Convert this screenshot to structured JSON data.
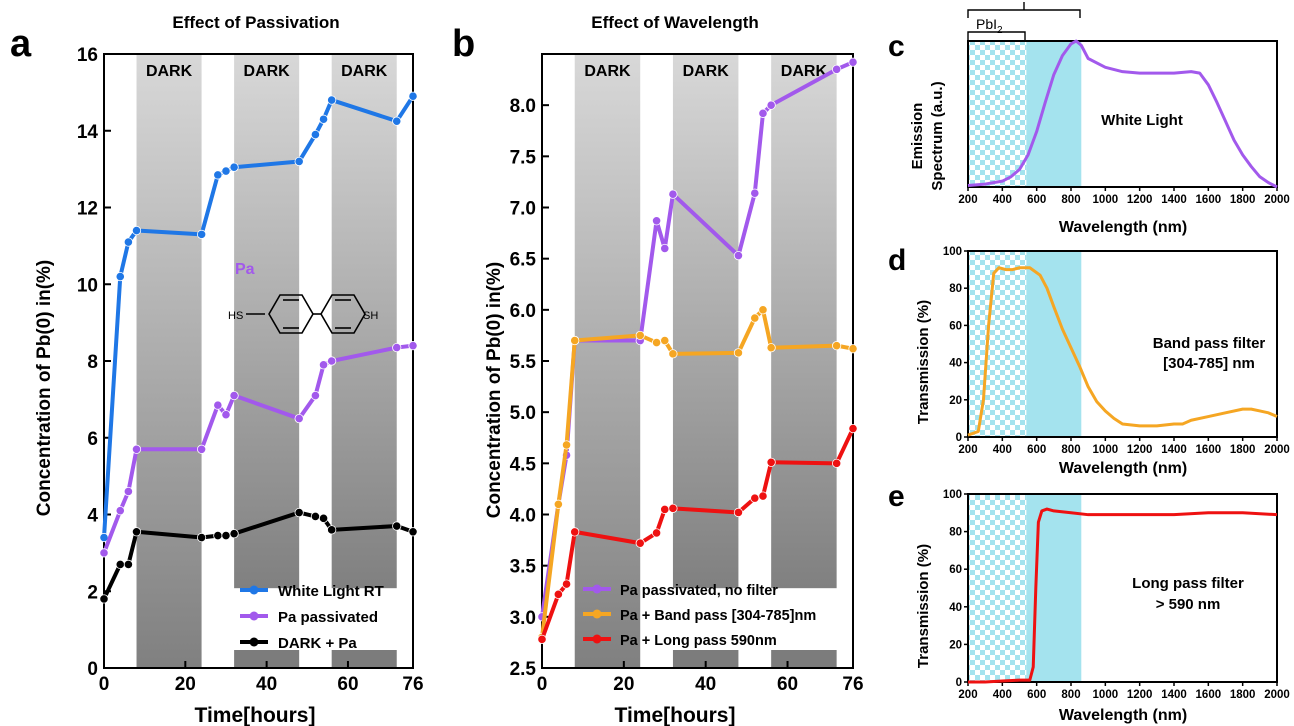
{
  "colors": {
    "blue": "#1f77e6",
    "purple": "#a259ec",
    "black": "#000000",
    "orange": "#f5a623",
    "red": "#ee1111",
    "cyan": "#a4e3ee",
    "dark_band_top": "#d8d8d8",
    "dark_band_bottom": "#808080"
  },
  "dark_label": "DARK",
  "molecule": {
    "name": "Pa",
    "left_group": "HS",
    "right_group": "SH"
  },
  "range_labels": {
    "pbi2_prefix": "PbI",
    "pbi2_subscript": "2"
  },
  "chart_data": [
    {
      "panel": "a",
      "type": "line",
      "title": "Effect of Passivation",
      "xlabel_main": "Time",
      "xlabel_unit": "[hours]",
      "ylabel": "Concentration of Pb(0) in(%)",
      "xlim": [
        0,
        76
      ],
      "ylim": [
        0,
        16
      ],
      "xticks": [
        0,
        20,
        40,
        60,
        76
      ],
      "yticks": [
        0,
        2,
        4,
        6,
        8,
        10,
        12,
        14,
        16
      ],
      "dark_bands": [
        [
          8,
          24
        ],
        [
          32,
          48
        ],
        [
          56,
          72
        ]
      ],
      "legend_position": "bottom-right",
      "series": [
        {
          "name": "White Light RT",
          "color": "#1f77e6",
          "x": [
            0,
            4,
            6,
            8,
            24,
            28,
            30,
            32,
            48,
            52,
            54,
            56,
            72,
            76
          ],
          "y": [
            3.4,
            10.2,
            11.1,
            11.4,
            11.3,
            12.85,
            12.95,
            13.05,
            13.2,
            13.9,
            14.3,
            14.8,
            14.25,
            14.9
          ]
        },
        {
          "name": "Pa passivated",
          "color": "#a259ec",
          "x": [
            0,
            4,
            6,
            8,
            24,
            28,
            30,
            32,
            48,
            52,
            54,
            56,
            72,
            76
          ],
          "y": [
            3.0,
            4.1,
            4.6,
            5.7,
            5.7,
            6.85,
            6.6,
            7.1,
            6.5,
            7.1,
            7.9,
            8.0,
            8.35,
            8.4
          ]
        },
        {
          "name": "DARK + Pa",
          "color": "#000000",
          "x": [
            0,
            4,
            6,
            8,
            24,
            28,
            30,
            32,
            48,
            52,
            54,
            56,
            72,
            76
          ],
          "y": [
            1.8,
            2.7,
            2.7,
            3.55,
            3.4,
            3.45,
            3.45,
            3.5,
            4.05,
            3.95,
            3.9,
            3.6,
            3.7,
            3.55
          ]
        }
      ]
    },
    {
      "panel": "b",
      "type": "line",
      "title": "Effect of Wavelength",
      "xlabel_main": "Time",
      "xlabel_unit": "[hours]",
      "ylabel": "Concentration of Pb(0) in(%)",
      "xlim": [
        0,
        76
      ],
      "ylim": [
        2.5,
        8.5
      ],
      "xticks": [
        0,
        20,
        40,
        60,
        76
      ],
      "yticks": [
        2.5,
        3.0,
        3.5,
        4.0,
        4.5,
        5.0,
        5.5,
        6.0,
        6.5,
        7.0,
        7.5,
        8.0
      ],
      "yticklabels": [
        "2.5",
        "3.0",
        "3.5",
        "4.0",
        "4.5",
        "5.0",
        "5.5",
        "6.0",
        "6.5",
        "7.0",
        "7.5",
        "8.0"
      ],
      "dark_bands": [
        [
          8,
          24
        ],
        [
          32,
          48
        ],
        [
          56,
          72
        ]
      ],
      "legend_position": "bottom-right",
      "series": [
        {
          "name": "Pa passivated, no filter",
          "color": "#a259ec",
          "x": [
            0,
            4,
            6,
            8,
            24,
            28,
            30,
            32,
            48,
            52,
            54,
            56,
            72,
            76
          ],
          "y": [
            3.0,
            4.1,
            4.58,
            5.7,
            5.7,
            6.87,
            6.6,
            7.13,
            6.53,
            7.14,
            7.92,
            8.0,
            8.35,
            8.42
          ]
        },
        {
          "name": "Pa + Band pass [304-785]nm",
          "color": "#f5a623",
          "x": [
            0,
            4,
            6,
            8,
            24,
            28,
            30,
            32,
            48,
            52,
            54,
            56,
            72,
            76
          ],
          "y": [
            2.8,
            4.1,
            4.68,
            5.7,
            5.75,
            5.68,
            5.7,
            5.57,
            5.58,
            5.92,
            6.0,
            5.63,
            5.65,
            5.62
          ]
        },
        {
          "name": "Pa + Long pass 590nm",
          "color": "#ee1111",
          "x": [
            0,
            4,
            6,
            8,
            24,
            28,
            30,
            32,
            48,
            52,
            54,
            56,
            72,
            76
          ],
          "y": [
            2.78,
            3.22,
            3.32,
            3.83,
            3.72,
            3.82,
            4.05,
            4.06,
            4.02,
            4.16,
            4.18,
            4.51,
            4.5,
            4.84
          ]
        }
      ]
    },
    {
      "panel": "c",
      "type": "line",
      "xlabel": "Wavelength (nm)",
      "ylabel_line1": "Emission",
      "ylabel_line2": "Spectrum (a.u.)",
      "annotation": "White Light",
      "xlim": [
        200,
        2000
      ],
      "xticks": [
        200,
        400,
        600,
        800,
        1000,
        1200,
        1400,
        1600,
        1800,
        2000
      ],
      "ylim": [
        0,
        1
      ],
      "series": [
        {
          "color": "#a259ec",
          "x": [
            200,
            300,
            400,
            450,
            500,
            550,
            600,
            650,
            700,
            750,
            800,
            830,
            860,
            900,
            1000,
            1100,
            1200,
            1300,
            1400,
            1500,
            1550,
            1600,
            1650,
            1700,
            1750,
            1800,
            1850,
            1900,
            1950,
            2000
          ],
          "y": [
            0.01,
            0.02,
            0.04,
            0.07,
            0.12,
            0.22,
            0.38,
            0.58,
            0.77,
            0.9,
            0.98,
            1.0,
            0.97,
            0.88,
            0.82,
            0.79,
            0.78,
            0.78,
            0.78,
            0.79,
            0.78,
            0.7,
            0.58,
            0.45,
            0.32,
            0.22,
            0.14,
            0.07,
            0.03,
            0.0
          ]
        }
      ]
    },
    {
      "panel": "d",
      "type": "line",
      "xlabel": "Wavelength (nm)",
      "ylabel": "Transmission (%)",
      "annotation_line1": "Band pass filter",
      "annotation_line2": "[304-785] nm",
      "xlim": [
        200,
        2000
      ],
      "xticks": [
        200,
        400,
        600,
        800,
        1000,
        1200,
        1400,
        1600,
        1800,
        2000
      ],
      "ylim": [
        0,
        100
      ],
      "yticks": [
        0,
        20,
        40,
        60,
        80,
        100
      ],
      "series": [
        {
          "color": "#f5a623",
          "x": [
            200,
            260,
            290,
            320,
            350,
            380,
            420,
            460,
            500,
            560,
            620,
            660,
            700,
            750,
            800,
            850,
            900,
            950,
            1000,
            1050,
            1100,
            1200,
            1300,
            1400,
            1450,
            1500,
            1600,
            1700,
            1800,
            1850,
            1900,
            1950,
            2000
          ],
          "y": [
            1,
            3,
            20,
            60,
            88,
            91,
            90,
            90,
            91,
            91,
            87,
            80,
            70,
            58,
            48,
            38,
            27,
            19,
            14,
            10,
            7,
            6,
            6,
            7,
            7,
            9,
            11,
            13,
            15,
            15,
            14,
            13,
            11
          ]
        }
      ]
    },
    {
      "panel": "e",
      "type": "line",
      "xlabel": "Wavelength (nm)",
      "ylabel": "Transmission (%)",
      "annotation_line1": "Long pass filter",
      "annotation_line2": "> 590 nm",
      "xlim": [
        200,
        2000
      ],
      "xticks": [
        200,
        400,
        600,
        800,
        1000,
        1200,
        1400,
        1600,
        1800,
        2000
      ],
      "ylim": [
        0,
        100
      ],
      "yticks": [
        0,
        20,
        40,
        60,
        80,
        100
      ],
      "series": [
        {
          "color": "#ee1111",
          "x": [
            200,
            300,
            400,
            500,
            560,
            580,
            595,
            610,
            630,
            660,
            700,
            800,
            900,
            1000,
            1200,
            1400,
            1600,
            1800,
            2000
          ],
          "y": [
            0,
            0,
            0.5,
            1,
            1,
            8,
            50,
            85,
            91,
            92,
            91,
            90,
            89,
            89,
            89,
            89,
            90,
            90,
            89
          ]
        }
      ]
    }
  ]
}
